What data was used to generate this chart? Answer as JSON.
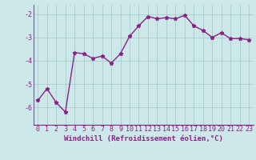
{
  "x": [
    0,
    1,
    2,
    3,
    4,
    5,
    6,
    7,
    8,
    9,
    10,
    11,
    12,
    13,
    14,
    15,
    16,
    17,
    18,
    19,
    20,
    21,
    22,
    23
  ],
  "y": [
    -5.7,
    -5.2,
    -5.8,
    -6.2,
    -3.65,
    -3.7,
    -3.9,
    -3.8,
    -4.1,
    -3.7,
    -2.95,
    -2.5,
    -2.1,
    -2.2,
    -2.15,
    -2.2,
    -2.05,
    -2.5,
    -2.7,
    -3.0,
    -2.8,
    -3.05,
    -3.05,
    -3.1
  ],
  "line_color": "#882288",
  "marker": "*",
  "marker_size": 3.5,
  "bg_color": "#cce8e8",
  "grid_color": "#aacccc",
  "xlabel": "Windchill (Refroidissement éolien,°C)",
  "ylim": [
    -6.75,
    -1.6
  ],
  "xlim": [
    -0.5,
    23.5
  ],
  "yticks": [
    -6,
    -5,
    -4,
    -3,
    -2
  ],
  "tick_color": "#882288",
  "label_fontsize": 6.5,
  "tick_fontsize": 6.0,
  "line_width": 1.0
}
